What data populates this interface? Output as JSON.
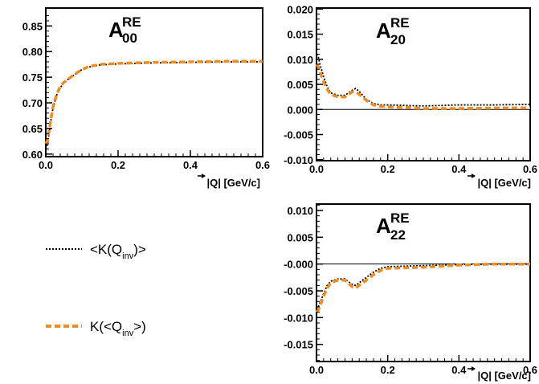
{
  "colors": {
    "series_a": "#000000",
    "series_b": "#f28c1e"
  },
  "legend": {
    "a": {
      "pre": "<K(Q",
      "sub": "inv",
      "post": ")>"
    },
    "b": {
      "pre": "K(<Q",
      "sub": "inv",
      "post": ">)"
    }
  },
  "chart_data": [
    {
      "type": "line",
      "title": {
        "main": "A",
        "sup": "RE",
        "sub": "00"
      },
      "xlabel": "|Q| [GeV/c]",
      "xlim": [
        0,
        0.6
      ],
      "ylim": [
        0.595,
        0.885
      ],
      "xticks": [
        "0.0",
        "0.2",
        "0.4",
        "0.6"
      ],
      "yticks": [
        "0.60",
        "0.65",
        "0.70",
        "0.75",
        "0.80",
        "0.85"
      ],
      "zero_line": false,
      "series": [
        {
          "style": "dotted",
          "x": [
            0,
            0.005,
            0.01,
            0.015,
            0.02,
            0.03,
            0.04,
            0.05,
            0.06,
            0.08,
            0.1,
            0.12,
            0.15,
            0.2,
            0.25,
            0.3,
            0.4,
            0.5,
            0.6
          ],
          "y": [
            0.61,
            0.62,
            0.645,
            0.67,
            0.69,
            0.715,
            0.73,
            0.738,
            0.745,
            0.755,
            0.765,
            0.77,
            0.774,
            0.776,
            0.777,
            0.778,
            0.779,
            0.78,
            0.78
          ]
        },
        {
          "style": "dashed",
          "x": [
            0,
            0.005,
            0.01,
            0.015,
            0.02,
            0.03,
            0.04,
            0.05,
            0.06,
            0.08,
            0.1,
            0.12,
            0.15,
            0.2,
            0.25,
            0.3,
            0.4,
            0.5,
            0.6
          ],
          "y": [
            0.62,
            0.628,
            0.65,
            0.672,
            0.692,
            0.716,
            0.732,
            0.74,
            0.745,
            0.756,
            0.765,
            0.771,
            0.775,
            0.777,
            0.778,
            0.779,
            0.78,
            0.781,
            0.781
          ]
        }
      ]
    },
    {
      "type": "line",
      "title": {
        "main": "A",
        "sup": "RE",
        "sub": "20"
      },
      "xlabel": "|Q| [GeV/c]",
      "xlim": [
        0,
        0.6
      ],
      "ylim": [
        -0.0102,
        0.0202
      ],
      "xticks": [
        "0.0",
        "0.2",
        "0.4",
        "0.6"
      ],
      "yticks": [
        "-0.010",
        "-0.005",
        "0.000",
        "0.005",
        "0.010",
        "0.015",
        "0.020"
      ],
      "zero_line": true,
      "series": [
        {
          "style": "dotted",
          "x": [
            0,
            0.005,
            0.01,
            0.02,
            0.03,
            0.04,
            0.06,
            0.08,
            0.09,
            0.1,
            0.11,
            0.12,
            0.14,
            0.16,
            0.18,
            0.2,
            0.25,
            0.3,
            0.35,
            0.4,
            0.5,
            0.6
          ],
          "y": [
            0.011,
            0.0105,
            0.009,
            0.0065,
            0.0045,
            0.0033,
            0.0028,
            0.0028,
            0.0033,
            0.0038,
            0.0042,
            0.0036,
            0.002,
            0.0012,
            0.0009,
            0.0009,
            0.0008,
            0.0007,
            0.0008,
            0.0009,
            0.0009,
            0.001
          ]
        },
        {
          "style": "dashed",
          "x": [
            0,
            0.005,
            0.01,
            0.02,
            0.03,
            0.04,
            0.06,
            0.08,
            0.09,
            0.1,
            0.11,
            0.12,
            0.14,
            0.16,
            0.18,
            0.2,
            0.25,
            0.3,
            0.35,
            0.4,
            0.5,
            0.6
          ],
          "y": [
            0.009,
            0.0085,
            0.0075,
            0.0055,
            0.004,
            0.003,
            0.0025,
            0.0025,
            0.003,
            0.0035,
            0.0035,
            0.003,
            0.0018,
            0.0009,
            0.0006,
            0.0005,
            0.0004,
            0.0002,
            0.0002,
            0.0002,
            0.0003,
            0.0003
          ]
        }
      ]
    },
    {
      "type": "line",
      "title": {
        "main": "A",
        "sup": "RE",
        "sub": "22"
      },
      "xlabel": "|Q| [GeV/c]",
      "xlim": [
        0,
        0.6
      ],
      "ylim": [
        -0.0182,
        0.0112
      ],
      "xticks": [
        "0.0",
        "0.2",
        "0.4",
        "0.6"
      ],
      "yticks": [
        "-0.015",
        "-0.010",
        "-0.005",
        "-0.000",
        "0.005",
        "0.010"
      ],
      "zero_line": true,
      "series": [
        {
          "style": "dotted",
          "x": [
            0,
            0.005,
            0.01,
            0.02,
            0.03,
            0.04,
            0.06,
            0.08,
            0.1,
            0.11,
            0.12,
            0.14,
            0.16,
            0.18,
            0.2,
            0.25,
            0.3,
            0.35,
            0.4,
            0.5,
            0.6
          ],
          "y": [
            -0.0085,
            -0.008,
            -0.0072,
            -0.0055,
            -0.004,
            -0.0032,
            -0.0028,
            -0.0028,
            -0.0038,
            -0.004,
            -0.0035,
            -0.0025,
            -0.0015,
            -0.0008,
            -0.0005,
            -0.0004,
            -0.0003,
            -0.0002,
            -0.0001,
            0.0,
            0.0
          ]
        },
        {
          "style": "dashed",
          "x": [
            0,
            0.005,
            0.01,
            0.02,
            0.03,
            0.04,
            0.06,
            0.08,
            0.1,
            0.11,
            0.12,
            0.14,
            0.16,
            0.18,
            0.2,
            0.25,
            0.3,
            0.35,
            0.4,
            0.5,
            0.6
          ],
          "y": [
            -0.009,
            -0.0086,
            -0.0078,
            -0.006,
            -0.0045,
            -0.0035,
            -0.003,
            -0.003,
            -0.0042,
            -0.0045,
            -0.004,
            -0.003,
            -0.002,
            -0.0012,
            -0.0008,
            -0.0007,
            -0.0006,
            -0.0004,
            -0.0002,
            0.0,
            0.0
          ]
        }
      ]
    }
  ]
}
